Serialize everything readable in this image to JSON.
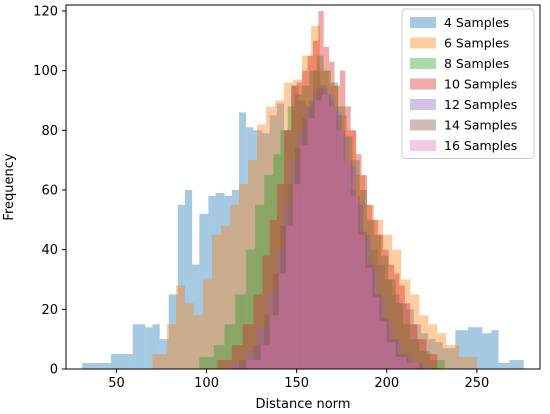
{
  "chart_data": {
    "type": "bar",
    "title": "",
    "xlabel": "Distance norm",
    "ylabel": "Frequency",
    "xlim": [
      22,
      285
    ],
    "ylim": [
      0,
      122
    ],
    "xticks": [
      50,
      100,
      150,
      200,
      250
    ],
    "yticks": [
      0,
      20,
      40,
      60,
      80,
      100,
      120
    ],
    "xtick_labels": [
      "50",
      "100",
      "150",
      "200",
      "250"
    ],
    "ytick_labels": [
      "0",
      "20",
      "40",
      "60",
      "80",
      "100",
      "120"
    ],
    "legend_placement": "top-right",
    "grid": false,
    "histtype": "stepfilled histograms (overlaid, alpha ~0.4)",
    "series": [
      {
        "name": "4 Samples",
        "color": "#1f77b4",
        "bins": [
          [
            31,
            47,
            2
          ],
          [
            47,
            59,
            5
          ],
          [
            59,
            66,
            15
          ],
          [
            66,
            70,
            14
          ],
          [
            70,
            74,
            15
          ],
          [
            74,
            79,
            10
          ],
          [
            79,
            84,
            25
          ],
          [
            84,
            88,
            55
          ],
          [
            88,
            92,
            60
          ],
          [
            92,
            96,
            35
          ],
          [
            96,
            101,
            52
          ],
          [
            101,
            105,
            58
          ],
          [
            105,
            110,
            59
          ],
          [
            110,
            114,
            58
          ],
          [
            114,
            118,
            60
          ],
          [
            118,
            122,
            86
          ],
          [
            122,
            126,
            81
          ],
          [
            126,
            131,
            80
          ],
          [
            131,
            135,
            79
          ],
          [
            135,
            139,
            85
          ],
          [
            139,
            143,
            89
          ],
          [
            143,
            147,
            80
          ],
          [
            147,
            151,
            95
          ],
          [
            151,
            155,
            90
          ],
          [
            155,
            159,
            88
          ],
          [
            159,
            163,
            100
          ],
          [
            163,
            167,
            95
          ],
          [
            167,
            171,
            90
          ],
          [
            171,
            175,
            85
          ],
          [
            175,
            179,
            70
          ],
          [
            179,
            183,
            60
          ],
          [
            183,
            187,
            55
          ],
          [
            187,
            191,
            45
          ],
          [
            191,
            195,
            40
          ],
          [
            195,
            199,
            35
          ],
          [
            199,
            203,
            30
          ],
          [
            203,
            207,
            25
          ],
          [
            207,
            211,
            22
          ],
          [
            211,
            215,
            20
          ],
          [
            215,
            219,
            15
          ],
          [
            219,
            223,
            12
          ],
          [
            223,
            227,
            10
          ],
          [
            227,
            231,
            9
          ],
          [
            231,
            238,
            7
          ],
          [
            238,
            245,
            13
          ],
          [
            245,
            253,
            14
          ],
          [
            253,
            258,
            12
          ],
          [
            258,
            262,
            13
          ],
          [
            262,
            268,
            2
          ],
          [
            268,
            276,
            3
          ]
        ]
      },
      {
        "name": "6 Samples",
        "color": "#ff7f0e",
        "bins": [
          [
            70,
            78,
            5
          ],
          [
            78,
            83,
            15
          ],
          [
            83,
            88,
            28
          ],
          [
            88,
            93,
            22
          ],
          [
            93,
            98,
            18
          ],
          [
            98,
            103,
            30
          ],
          [
            103,
            108,
            45
          ],
          [
            108,
            113,
            48
          ],
          [
            113,
            118,
            55
          ],
          [
            118,
            123,
            62
          ],
          [
            123,
            128,
            70
          ],
          [
            128,
            133,
            82
          ],
          [
            133,
            138,
            88
          ],
          [
            138,
            143,
            90
          ],
          [
            143,
            148,
            96
          ],
          [
            148,
            153,
            97
          ],
          [
            153,
            158,
            105
          ],
          [
            158,
            163,
            115
          ],
          [
            163,
            168,
            100
          ],
          [
            168,
            173,
            95
          ],
          [
            173,
            178,
            85
          ],
          [
            178,
            183,
            80
          ],
          [
            183,
            188,
            65
          ],
          [
            188,
            193,
            55
          ],
          [
            193,
            198,
            50
          ],
          [
            198,
            203,
            45
          ],
          [
            203,
            208,
            40
          ],
          [
            208,
            213,
            30
          ],
          [
            213,
            218,
            25
          ],
          [
            218,
            223,
            18
          ],
          [
            223,
            228,
            15
          ],
          [
            228,
            233,
            12
          ],
          [
            233,
            240,
            8
          ],
          [
            240,
            250,
            4
          ]
        ]
      },
      {
        "name": "8 Samples",
        "color": "#2ca02c",
        "bins": [
          [
            96,
            104,
            4
          ],
          [
            104,
            110,
            8
          ],
          [
            110,
            116,
            15
          ],
          [
            116,
            122,
            25
          ],
          [
            122,
            127,
            40
          ],
          [
            127,
            132,
            55
          ],
          [
            132,
            137,
            65
          ],
          [
            137,
            141,
            72
          ],
          [
            141,
            145,
            80
          ],
          [
            145,
            149,
            88
          ],
          [
            149,
            153,
            92
          ],
          [
            153,
            157,
            95
          ],
          [
            157,
            161,
            100
          ],
          [
            161,
            165,
            105
          ],
          [
            165,
            169,
            100
          ],
          [
            169,
            173,
            96
          ],
          [
            173,
            177,
            88
          ],
          [
            177,
            181,
            78
          ],
          [
            181,
            185,
            70
          ],
          [
            185,
            189,
            60
          ],
          [
            189,
            193,
            50
          ],
          [
            193,
            197,
            45
          ],
          [
            197,
            201,
            38
          ],
          [
            201,
            205,
            30
          ],
          [
            205,
            209,
            22
          ],
          [
            209,
            213,
            15
          ],
          [
            213,
            218,
            10
          ],
          [
            218,
            224,
            6
          ],
          [
            224,
            232,
            3
          ]
        ]
      },
      {
        "name": "10 Samples",
        "color": "#d62728",
        "bins": [
          [
            106,
            114,
            3
          ],
          [
            114,
            120,
            8
          ],
          [
            120,
            126,
            15
          ],
          [
            126,
            131,
            25
          ],
          [
            131,
            135,
            38
          ],
          [
            135,
            139,
            50
          ],
          [
            139,
            143,
            62
          ],
          [
            143,
            147,
            80
          ],
          [
            147,
            150,
            95
          ],
          [
            150,
            153,
            96
          ],
          [
            153,
            156,
            100
          ],
          [
            156,
            159,
            105
          ],
          [
            159,
            162,
            110
          ],
          [
            162,
            165,
            120
          ],
          [
            165,
            168,
            108
          ],
          [
            168,
            171,
            103
          ],
          [
            171,
            174,
            95
          ],
          [
            174,
            177,
            100
          ],
          [
            177,
            180,
            88
          ],
          [
            180,
            183,
            80
          ],
          [
            183,
            186,
            72
          ],
          [
            186,
            189,
            65
          ],
          [
            189,
            192,
            55
          ],
          [
            192,
            195,
            50
          ],
          [
            195,
            198,
            45
          ],
          [
            198,
            201,
            40
          ],
          [
            201,
            204,
            35
          ],
          [
            204,
            207,
            32
          ],
          [
            207,
            210,
            28
          ],
          [
            210,
            213,
            22
          ],
          [
            213,
            217,
            15
          ],
          [
            217,
            222,
            10
          ],
          [
            222,
            228,
            5
          ]
        ]
      },
      {
        "name": "12 Samples",
        "color": "#9467bd",
        "bins": [
          [
            114,
            122,
            2
          ],
          [
            122,
            128,
            6
          ],
          [
            128,
            134,
            14
          ],
          [
            134,
            139,
            26
          ],
          [
            139,
            143,
            40
          ],
          [
            143,
            147,
            55
          ],
          [
            147,
            151,
            70
          ],
          [
            151,
            155,
            80
          ],
          [
            155,
            159,
            88
          ],
          [
            159,
            163,
            92
          ],
          [
            163,
            167,
            95
          ],
          [
            167,
            171,
            92
          ],
          [
            171,
            175,
            86
          ],
          [
            175,
            179,
            78
          ],
          [
            179,
            183,
            68
          ],
          [
            183,
            187,
            56
          ],
          [
            187,
            191,
            44
          ],
          [
            191,
            195,
            34
          ],
          [
            195,
            199,
            24
          ],
          [
            199,
            203,
            16
          ],
          [
            203,
            208,
            10
          ],
          [
            208,
            214,
            5
          ],
          [
            214,
            222,
            2
          ]
        ]
      },
      {
        "name": "14 Samples",
        "color": "#8c564b",
        "bins": [
          [
            118,
            126,
            3
          ],
          [
            126,
            132,
            8
          ],
          [
            132,
            137,
            18
          ],
          [
            137,
            141,
            32
          ],
          [
            141,
            145,
            48
          ],
          [
            145,
            149,
            62
          ],
          [
            149,
            153,
            74
          ],
          [
            153,
            157,
            84
          ],
          [
            157,
            161,
            90
          ],
          [
            161,
            165,
            94
          ],
          [
            165,
            169,
            92
          ],
          [
            169,
            173,
            88
          ],
          [
            173,
            177,
            80
          ],
          [
            177,
            181,
            70
          ],
          [
            181,
            185,
            58
          ],
          [
            185,
            189,
            46
          ],
          [
            189,
            193,
            35
          ],
          [
            193,
            197,
            25
          ],
          [
            197,
            201,
            17
          ],
          [
            201,
            206,
            10
          ],
          [
            206,
            212,
            5
          ],
          [
            212,
            220,
            2
          ]
        ]
      },
      {
        "name": "16 Samples",
        "color": "#e377c2",
        "bins": [
          [
            122,
            130,
            3
          ],
          [
            130,
            135,
            8
          ],
          [
            135,
            140,
            18
          ],
          [
            140,
            144,
            32
          ],
          [
            144,
            148,
            48
          ],
          [
            148,
            152,
            62
          ],
          [
            152,
            156,
            75
          ],
          [
            156,
            160,
            84
          ],
          [
            160,
            164,
            90
          ],
          [
            164,
            168,
            92
          ],
          [
            168,
            172,
            88
          ],
          [
            172,
            176,
            80
          ],
          [
            176,
            180,
            70
          ],
          [
            180,
            184,
            58
          ],
          [
            184,
            188,
            45
          ],
          [
            188,
            192,
            34
          ],
          [
            192,
            196,
            24
          ],
          [
            196,
            200,
            16
          ],
          [
            200,
            205,
            9
          ],
          [
            205,
            211,
            4
          ],
          [
            211,
            218,
            2
          ]
        ]
      }
    ]
  }
}
